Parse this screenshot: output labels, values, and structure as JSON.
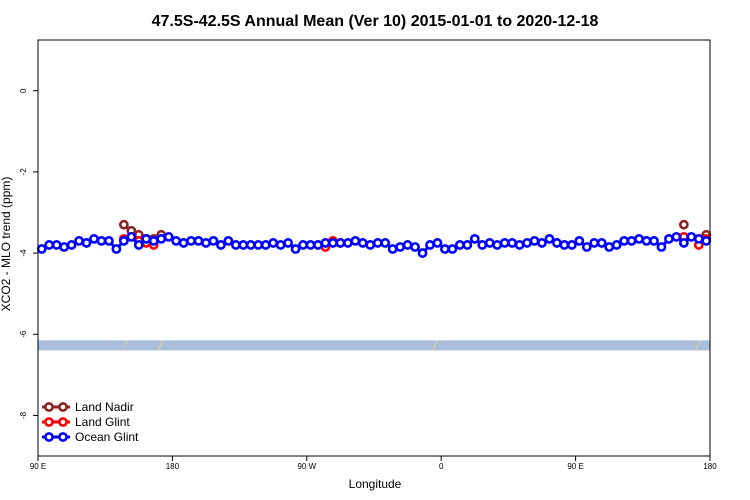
{
  "chart_data": {
    "type": "line",
    "title": "47.5S-42.5S Annual Mean (Ver 10)   2015-01-01 to 2020-12-18",
    "xlabel": "Longitude",
    "ylabel": "XCO2 - MLO trend (ppm)",
    "xlim": [
      90,
      540
    ],
    "ylim": [
      -9.0,
      1.25
    ],
    "x_ticks": [
      {
        "value": 90,
        "label": "90 E"
      },
      {
        "value": 180,
        "label": "180"
      },
      {
        "value": 270,
        "label": "90 W"
      },
      {
        "value": 360,
        "label": "0"
      },
      {
        "value": 450,
        "label": "90 E"
      },
      {
        "value": 540,
        "label": "180"
      }
    ],
    "y_ticks": [
      {
        "value": 0,
        "label": "0"
      },
      {
        "value": -2,
        "label": "-2"
      },
      {
        "value": -4,
        "label": "-4"
      },
      {
        "value": -6,
        "label": "-6"
      },
      {
        "value": -8,
        "label": "-8"
      }
    ],
    "grid": false,
    "legend_position": "bottom-left",
    "land_strip": {
      "y_range": [
        -6.4,
        -6.15
      ],
      "ocean_color": "#a9bfdc",
      "land_color": "#f7d27a",
      "land_segments": [
        [
          147,
          148
        ],
        [
          170,
          172
        ],
        [
          354,
          356
        ],
        [
          530,
          532
        ]
      ]
    },
    "series": [
      {
        "name": "Land Nadir",
        "color": "#8b2323",
        "points": [
          [
            147.5,
            -3.3
          ],
          [
            152.5,
            -3.45
          ],
          [
            157.5,
            -3.55
          ],
          [
            162.5,
            -3.65
          ],
          [
            172.5,
            -3.55
          ],
          [
            167.5,
            -3.65
          ],
          [
            522.5,
            -3.3
          ],
          [
            537.5,
            -3.55
          ]
        ],
        "segments": [
          [
            [
              147.5,
              -3.3
            ],
            [
              152.5,
              -3.45
            ],
            [
              157.5,
              -3.55
            ],
            [
              162.5,
              -3.65
            ]
          ],
          [
            [
              167.5,
              -3.65
            ],
            [
              172.5,
              -3.55
            ]
          ]
        ]
      },
      {
        "name": "Land Glint",
        "color": "#ff0000",
        "points": [
          [
            147.5,
            -3.65
          ],
          [
            152.5,
            -3.6
          ],
          [
            157.5,
            -3.7
          ],
          [
            162.5,
            -3.75
          ],
          [
            167.5,
            -3.8
          ],
          [
            282.5,
            -3.85
          ],
          [
            287.5,
            -3.7
          ],
          [
            292.5,
            -3.75
          ],
          [
            522.5,
            -3.6
          ],
          [
            532.5,
            -3.8
          ],
          [
            537.5,
            -3.65
          ]
        ],
        "segments": [
          [
            [
              147.5,
              -3.65
            ],
            [
              152.5,
              -3.6
            ],
            [
              157.5,
              -3.7
            ],
            [
              162.5,
              -3.75
            ],
            [
              167.5,
              -3.8
            ]
          ],
          [
            [
              282.5,
              -3.85
            ],
            [
              287.5,
              -3.7
            ],
            [
              292.5,
              -3.75
            ]
          ],
          [
            [
              532.5,
              -3.8
            ],
            [
              537.5,
              -3.65
            ]
          ]
        ]
      },
      {
        "name": "Ocean Glint",
        "color": "#0000ff",
        "x": [
          92.5,
          97.5,
          102.5,
          107.5,
          112.5,
          117.5,
          122.5,
          127.5,
          132.5,
          137.5,
          142.5,
          147.5,
          152.5,
          157.5,
          162.5,
          167.5,
          172.5,
          177.5,
          182.5,
          187.5,
          192.5,
          197.5,
          202.5,
          207.5,
          212.5,
          217.5,
          222.5,
          227.5,
          232.5,
          237.5,
          242.5,
          247.5,
          252.5,
          257.5,
          262.5,
          267.5,
          272.5,
          277.5,
          282.5,
          287.5,
          292.5,
          297.5,
          302.5,
          307.5,
          312.5,
          317.5,
          322.5,
          327.5,
          332.5,
          337.5,
          342.5,
          347.5,
          352.5,
          357.5,
          362.5,
          367.5,
          372.5,
          377.5,
          382.5,
          387.5,
          392.5,
          397.5,
          402.5,
          407.5,
          412.5,
          417.5,
          422.5,
          427.5,
          432.5,
          437.5,
          442.5,
          447.5,
          452.5,
          457.5,
          462.5,
          467.5,
          472.5,
          477.5,
          482.5,
          487.5,
          492.5,
          497.5,
          502.5,
          507.5,
          512.5,
          517.5,
          522.5,
          527.5,
          532.5,
          537.5
        ],
        "y": [
          -3.9,
          -3.8,
          -3.8,
          -3.85,
          -3.8,
          -3.7,
          -3.75,
          -3.65,
          -3.7,
          -3.7,
          -3.9,
          -3.7,
          -3.6,
          -3.8,
          -3.65,
          -3.7,
          -3.65,
          -3.6,
          -3.7,
          -3.75,
          -3.7,
          -3.7,
          -3.75,
          -3.7,
          -3.8,
          -3.7,
          -3.8,
          -3.8,
          -3.8,
          -3.8,
          -3.8,
          -3.75,
          -3.8,
          -3.75,
          -3.9,
          -3.8,
          -3.8,
          -3.8,
          -3.75,
          -3.75,
          -3.75,
          -3.75,
          -3.7,
          -3.75,
          -3.8,
          -3.75,
          -3.75,
          -3.9,
          -3.85,
          -3.8,
          -3.85,
          -4.0,
          -3.8,
          -3.75,
          -3.9,
          -3.9,
          -3.8,
          -3.8,
          -3.65,
          -3.8,
          -3.75,
          -3.8,
          -3.75,
          -3.75,
          -3.8,
          -3.75,
          -3.7,
          -3.75,
          -3.65,
          -3.75,
          -3.8,
          -3.8,
          -3.7,
          -3.85,
          -3.75,
          -3.75,
          -3.85,
          -3.8,
          -3.7,
          -3.7,
          -3.65,
          -3.7,
          -3.7,
          -3.85,
          -3.65,
          -3.6,
          -3.75,
          -3.6,
          -3.65,
          -3.7
        ]
      }
    ]
  }
}
